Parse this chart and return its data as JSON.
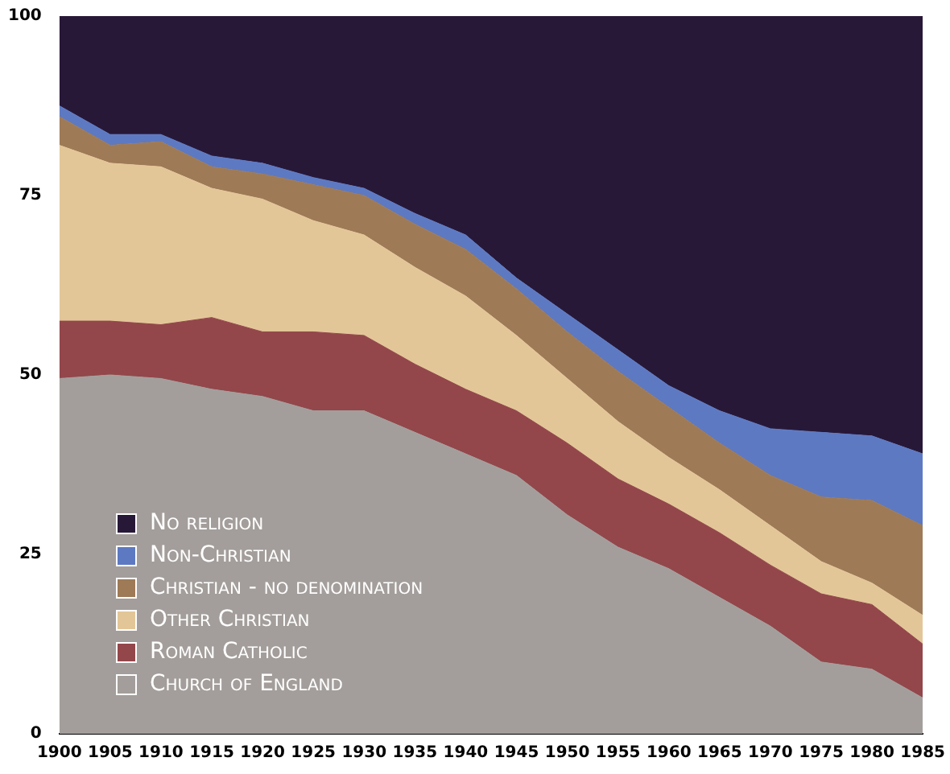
{
  "chart_data": {
    "type": "area",
    "stacked": true,
    "x": [
      1900,
      1905,
      1910,
      1915,
      1920,
      1925,
      1930,
      1935,
      1940,
      1945,
      1950,
      1955,
      1960,
      1965,
      1970,
      1975,
      1980,
      1985
    ],
    "xlim": [
      1900,
      1985
    ],
    "xticks": [
      1900,
      1905,
      1910,
      1915,
      1920,
      1925,
      1930,
      1935,
      1940,
      1945,
      1950,
      1955,
      1960,
      1965,
      1970,
      1975,
      1980,
      1985
    ],
    "ylim": [
      0,
      100
    ],
    "yticks": [
      0,
      25,
      50,
      75,
      100
    ],
    "grid": false,
    "legend": "bottom left",
    "series": [
      {
        "name": "Church of England",
        "color": "#a39e9b",
        "values": [
          49.5,
          50,
          49.5,
          48,
          47,
          45,
          45,
          42,
          39,
          36,
          30.5,
          26,
          23,
          19,
          15,
          10,
          9,
          5
        ]
      },
      {
        "name": "Roman Catholic",
        "color": "#93474b",
        "values": [
          8,
          7.5,
          7.5,
          10,
          9,
          11,
          10.5,
          9.5,
          9,
          9,
          10,
          9.5,
          9,
          9,
          8.5,
          9.5,
          9,
          7.5
        ]
      },
      {
        "name": "Other Christian",
        "color": "#e3c698",
        "values": [
          24.5,
          22,
          22,
          18,
          18.5,
          15.5,
          14,
          13.5,
          13,
          10.5,
          9,
          8,
          6.5,
          6,
          5.5,
          4.5,
          3,
          4
        ]
      },
      {
        "name": "Christian - no denomination",
        "color": "#9e7a57",
        "values": [
          4,
          2.5,
          3.5,
          3,
          3.5,
          5,
          5.5,
          6,
          6.5,
          6.5,
          6.5,
          7,
          7,
          6.5,
          7,
          9,
          11.5,
          12.5
        ]
      },
      {
        "name": "Non-Christian",
        "color": "#5d79c2",
        "values": [
          1.5,
          1.5,
          1,
          1.5,
          1.5,
          1,
          1,
          1.5,
          2,
          1.5,
          2.5,
          3,
          3,
          4.5,
          6.5,
          9,
          9,
          10
        ]
      },
      {
        "name": "No religion",
        "color": "#281838",
        "values": [
          12.5,
          16.5,
          16.5,
          19.5,
          20.5,
          22.5,
          24,
          27.5,
          30.5,
          36.5,
          41.5,
          46.5,
          51.5,
          55,
          57.5,
          58,
          58.5,
          61
        ]
      }
    ]
  }
}
